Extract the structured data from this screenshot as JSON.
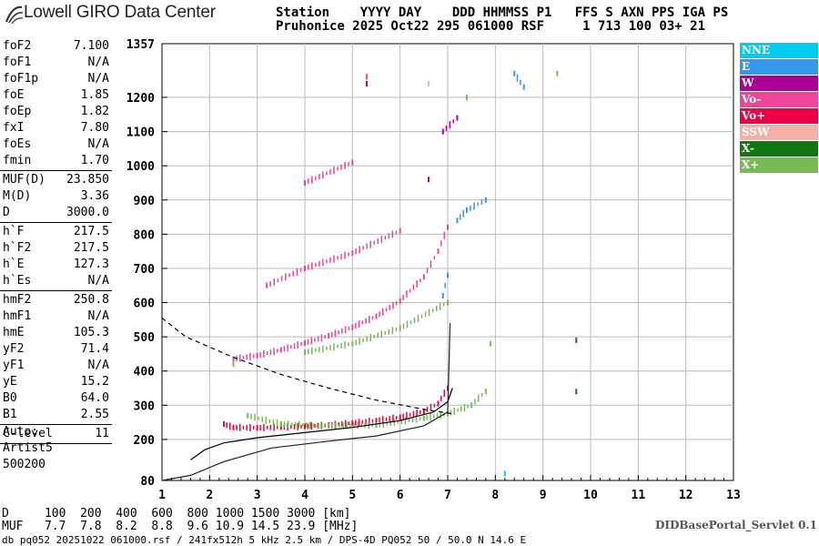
{
  "logo_text": "Lowell GIRO Data Center",
  "header": {
    "line1": "Station    YYYY DAY    DDD HHMMSS P1   FFS S AXN PPS IGA PS",
    "line2": "Pruhonice 2025 Oct22 295 061000 RSF     1 713 100 03+ 21"
  },
  "params": [
    {
      "name": "foF2",
      "value": "7.100"
    },
    {
      "name": "foF1",
      "value": "N/A"
    },
    {
      "name": "foF1p",
      "value": "N/A"
    },
    {
      "name": "foE",
      "value": "1.85"
    },
    {
      "name": "foEp",
      "value": "1.82"
    },
    {
      "name": "fxI",
      "value": "7.80"
    },
    {
      "name": "foEs",
      "value": "N/A"
    },
    {
      "name": "fmin",
      "value": "1.70"
    },
    {
      "name": "MUF(D)",
      "value": "23.850"
    },
    {
      "name": "M(D)",
      "value": "3.36"
    },
    {
      "name": "D",
      "value": "3000.0"
    },
    {
      "name": "h`F",
      "value": "217.5"
    },
    {
      "name": "h`F2",
      "value": "217.5"
    },
    {
      "name": "h`E",
      "value": "127.3"
    },
    {
      "name": "h`Es",
      "value": "N/A"
    },
    {
      "name": "hmF2",
      "value": "250.8"
    },
    {
      "name": "hmF1",
      "value": "N/A"
    },
    {
      "name": "hmE",
      "value": "105.3"
    },
    {
      "name": "yF2",
      "value": "71.4"
    },
    {
      "name": "yF1",
      "value": "N/A"
    },
    {
      "name": "yE",
      "value": "15.2"
    },
    {
      "name": "B0",
      "value": "64.0"
    },
    {
      "name": "B1",
      "value": "2.55"
    },
    {
      "name": "C-level",
      "value": "11"
    }
  ],
  "auto": {
    "line1": "Auto:",
    "line2": "Artist5",
    "line3": "500200"
  },
  "legend": [
    {
      "label": "NNE",
      "color": "#00ccee"
    },
    {
      "label": "E",
      "color": "#3399ee"
    },
    {
      "label": "W",
      "color": "#aa0099"
    },
    {
      "label": "Vo-",
      "color": "#ee4499"
    },
    {
      "label": "Vo+",
      "color": "#ee0044"
    },
    {
      "label": "SSW",
      "color": "#f4b0a8"
    },
    {
      "label": "X-",
      "color": "#117711"
    },
    {
      "label": "X+",
      "color": "#77bb55"
    }
  ],
  "muf_table": {
    "line1": "D     100  200  400  600  800 1000 1500 3000 [km]",
    "line2": "MUF   7.7  7.8  8.2  8.8  9.6 10.9 14.5 23.9 [MHz]"
  },
  "servlet": "DIDBasePortal_Servlet 0.1",
  "footer": "db pq052 20251022 061000.rsf / 241fx512h 5 kHz 2.5 km / DPS-4D PQ052 50 / 50.0 N 14.6 E",
  "chart_data": {
    "type": "scatter",
    "x_ticks": [
      "1",
      "2",
      "3",
      "4",
      "5",
      "6",
      "7",
      "8",
      "9",
      "10",
      "11",
      "12",
      "13"
    ],
    "y_ticks": [
      "80",
      "200",
      "300",
      "400",
      "500",
      "600",
      "700",
      "800",
      "900",
      "1000",
      "1100",
      "1200",
      "1357"
    ],
    "xlim": [
      1,
      13
    ],
    "ylim": [
      80,
      1357
    ],
    "grid": true,
    "series": [
      {
        "name": "Vo+",
        "color": "#ee0044",
        "points": [
          [
            2.3,
            245
          ],
          [
            2.5,
            235
          ],
          [
            3,
            234
          ],
          [
            3.5,
            236
          ],
          [
            4,
            238
          ],
          [
            4.5,
            242
          ],
          [
            5,
            248
          ],
          [
            5.5,
            255
          ],
          [
            6,
            265
          ],
          [
            6.5,
            282
          ],
          [
            6.8,
            305
          ],
          [
            7.0,
            350
          ]
        ]
      },
      {
        "name": "Vo-",
        "color": "#ee4499",
        "points": [
          [
            2.5,
            435
          ],
          [
            3,
            445
          ],
          [
            3.5,
            462
          ],
          [
            4,
            482
          ],
          [
            4.5,
            503
          ],
          [
            5,
            528
          ],
          [
            5.5,
            560
          ],
          [
            6,
            605
          ],
          [
            6.5,
            675
          ],
          [
            6.8,
            750
          ],
          [
            7.0,
            820
          ],
          [
            3.2,
            650
          ],
          [
            4,
            700
          ],
          [
            5,
            745
          ],
          [
            6,
            810
          ],
          [
            4,
            950
          ],
          [
            5,
            1010
          ],
          [
            5.3,
            1260
          ]
        ]
      },
      {
        "name": "W",
        "color": "#aa0099",
        "points": [
          [
            6.6,
            960
          ],
          [
            6.9,
            1100
          ],
          [
            7.2,
            1140
          ],
          [
            5.3,
            1240
          ]
        ]
      },
      {
        "name": "E",
        "color": "#3399ee",
        "points": [
          [
            6.9,
            620
          ],
          [
            7.0,
            680
          ],
          [
            7.2,
            840
          ],
          [
            7.4,
            870
          ],
          [
            7.8,
            900
          ],
          [
            8.6,
            1230
          ],
          [
            8.4,
            1270
          ]
        ]
      },
      {
        "name": "X+",
        "color": "#77bb55",
        "points": [
          [
            2.8,
            270
          ],
          [
            3.5,
            245
          ],
          [
            4.5,
            240
          ],
          [
            5.5,
            242
          ],
          [
            6.5,
            262
          ],
          [
            7.0,
            275
          ],
          [
            7.5,
            300
          ],
          [
            7.8,
            340
          ],
          [
            7.9,
            480
          ],
          [
            2.5,
            420
          ],
          [
            4,
            455
          ],
          [
            5,
            480
          ],
          [
            6,
            525
          ],
          [
            7,
            600
          ],
          [
            7.4,
            1200
          ],
          [
            9.3,
            1270
          ]
        ]
      },
      {
        "name": "SSW",
        "color": "#f4b0a8",
        "points": [
          [
            6.6,
            1240
          ]
        ]
      },
      {
        "name": "X-",
        "color": "#117711",
        "points": [
          [
            9.7,
            490
          ],
          [
            9.7,
            340
          ]
        ]
      },
      {
        "name": "NNE",
        "color": "#00ccee",
        "points": [
          [
            8.2,
            100
          ]
        ]
      }
    ],
    "model_profile": {
      "x": [
        1.6,
        1.9,
        2.3,
        3,
        4,
        5,
        6,
        6.7,
        7.0,
        7.1
      ],
      "y": [
        140,
        170,
        190,
        205,
        220,
        235,
        255,
        280,
        310,
        350
      ]
    },
    "virtual_height_curve": {
      "x": [
        1.0,
        1.6,
        2.3,
        3.3,
        4.5,
        5.5,
        6.5,
        7.0,
        7.05
      ],
      "y": [
        80,
        95,
        135,
        175,
        195,
        210,
        240,
        280,
        540
      ]
    },
    "muf_curve": {
      "x": [
        1.0,
        1.5,
        2.5,
        3.5,
        4.5,
        5.5,
        6.5,
        7.1
      ],
      "y": [
        555,
        500,
        440,
        390,
        350,
        315,
        288,
        275
      ]
    }
  }
}
